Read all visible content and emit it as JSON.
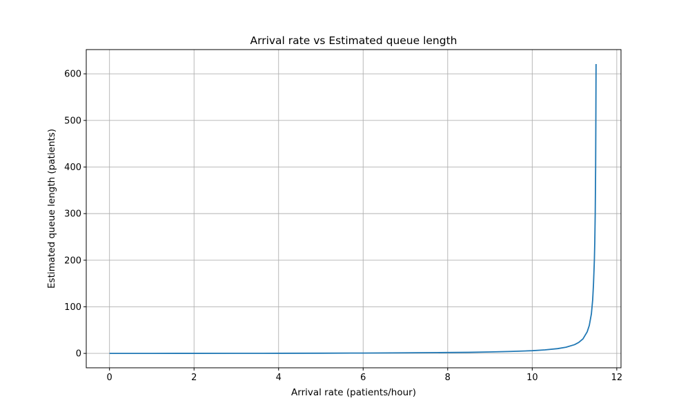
{
  "chart_data": {
    "type": "line",
    "title": "Arrival rate vs Estimated queue length",
    "xlabel": "Arrival rate (patients/hour)",
    "ylabel": "Estimated queue length (patients)",
    "xlim": [
      -0.55,
      12.1
    ],
    "ylim": [
      -30.9,
      652
    ],
    "xticks": [
      0,
      2,
      4,
      6,
      8,
      10,
      12
    ],
    "yticks": [
      0,
      100,
      200,
      300,
      400,
      500,
      600
    ],
    "xtick_labels": [
      "0",
      "2",
      "4",
      "6",
      "8",
      "10",
      "12"
    ],
    "ytick_labels": [
      "0",
      "100",
      "200",
      "300",
      "400",
      "500",
      "600"
    ],
    "grid": true,
    "legend": "none",
    "series": [
      {
        "color": "#1f77b4",
        "x": [
          0,
          1,
          2,
          3,
          4,
          5,
          6,
          7,
          8,
          8.5,
          9,
          9.5,
          10,
          10.3,
          10.6,
          10.8,
          11.0,
          11.1,
          11.2,
          11.3,
          11.35,
          11.4,
          11.43,
          11.45,
          11.47,
          11.48,
          11.49,
          11.5,
          11.505,
          11.51
        ],
        "y": [
          0,
          0.01,
          0.04,
          0.11,
          0.23,
          0.43,
          0.73,
          1.2,
          1.9,
          2.3,
          3.1,
          4.2,
          5.8,
          7.5,
          10.2,
          13.2,
          18.7,
          23.5,
          31.1,
          46.2,
          60.0,
          85.0,
          115,
          150,
          200,
          240,
          300,
          400,
          500,
          621
        ]
      }
    ]
  }
}
